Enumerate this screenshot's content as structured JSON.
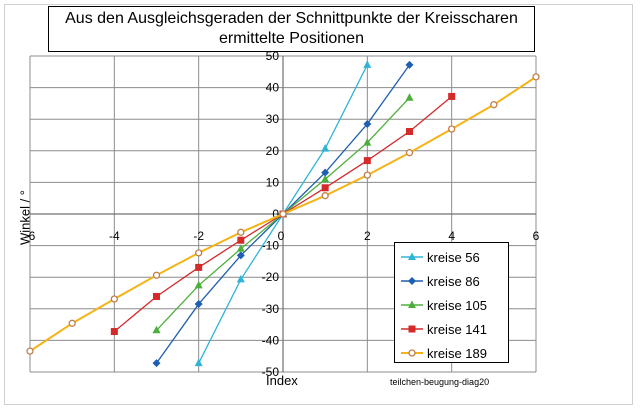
{
  "chart_data": {
    "type": "line",
    "title_lines": [
      "Aus den  Ausgleichsgeraden der Schnittpunkte der Kreisscharen",
      "ermittelte Positionen"
    ],
    "xlabel": "Index",
    "ylabel": "Winkel / °",
    "xlim": [
      -6,
      6
    ],
    "ylim": [
      -50,
      50
    ],
    "x_ticks": [
      -6,
      -4,
      -2,
      0,
      2,
      4,
      6
    ],
    "y_ticks": [
      -50,
      -40,
      -30,
      -20,
      -10,
      0,
      10,
      20,
      30,
      40,
      50
    ],
    "grid": true,
    "legend_position": "bottom-right",
    "series": [
      {
        "name": "kreise 56",
        "color": "#2fb4d8",
        "marker": "triangle",
        "x": [
          -2,
          -1,
          0,
          1,
          2
        ],
        "y": [
          -47.2,
          -20.7,
          0,
          20.7,
          47.2
        ]
      },
      {
        "name": "kreise 86",
        "color": "#1f5fb0",
        "marker": "diamond",
        "x": [
          -3,
          -2,
          -1,
          0,
          1,
          2,
          3
        ],
        "y": [
          -47.2,
          -28.5,
          -13.1,
          0,
          13.1,
          28.5,
          47.2
        ]
      },
      {
        "name": "kreise 105",
        "color": "#4caf3a",
        "marker": "triangle",
        "x": [
          -3,
          -2,
          -1,
          0,
          1,
          2,
          3
        ],
        "y": [
          -36.8,
          -22.6,
          -11.0,
          0,
          11.0,
          22.6,
          36.8
        ]
      },
      {
        "name": "kreise 141",
        "color": "#d42a2a",
        "marker": "square",
        "x": [
          -4,
          -3,
          -2,
          -1,
          0,
          1,
          2,
          3,
          4
        ],
        "y": [
          -37.2,
          -26.1,
          -16.9,
          -8.3,
          0,
          8.3,
          16.9,
          26.1,
          37.2
        ]
      },
      {
        "name": "kreise 189",
        "color": "#f5b316",
        "marker": "circle",
        "x": [
          -6,
          -5,
          -4,
          -3,
          -2,
          -1,
          0,
          1,
          2,
          3,
          4,
          5,
          6
        ],
        "y": [
          -43.4,
          -34.6,
          -26.9,
          -19.4,
          -12.3,
          -5.8,
          0,
          5.8,
          12.3,
          19.4,
          26.9,
          34.6,
          43.4
        ]
      }
    ],
    "annotation": "teilchen-beugung-diag20"
  }
}
